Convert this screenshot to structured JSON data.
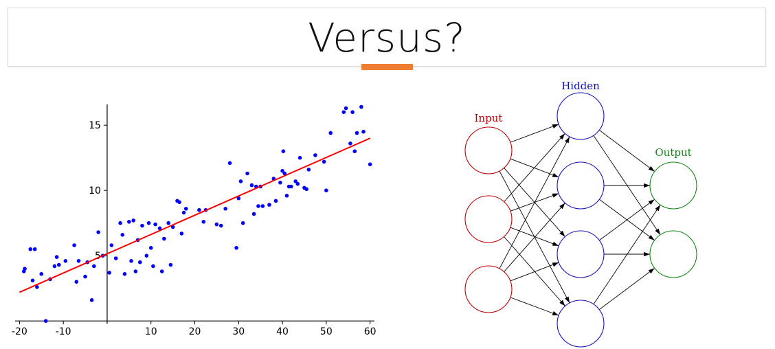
{
  "slide": {
    "title": "Versus?",
    "accent_color": "#ed7d31"
  },
  "chart_data": {
    "type": "scatter",
    "title": "",
    "xlabel": "",
    "ylabel": "",
    "xlim": [
      -21,
      61
    ],
    "ylim": [
      -0.2,
      16.8
    ],
    "x_ticks": [
      -20,
      -10,
      10,
      20,
      30,
      40,
      50,
      60
    ],
    "x_tick_labels": [
      "-20",
      "-10",
      "10",
      "20",
      "30",
      "40",
      "50",
      "60"
    ],
    "y_ticks": [
      5,
      10,
      15
    ],
    "y_tick_labels": [
      "5",
      "10",
      "15"
    ],
    "point_color": "#0000ff",
    "line_color": "#ff0000",
    "regression_line": {
      "x": [
        -20,
        60
      ],
      "y": [
        2.2,
        14.0
      ]
    },
    "points": [
      [
        -19,
        3.8
      ],
      [
        -18.8,
        4.0
      ],
      [
        -17.5,
        5.5
      ],
      [
        -17,
        3.1
      ],
      [
        -16.5,
        5.5
      ],
      [
        -16,
        2.6
      ],
      [
        -15,
        3.6
      ],
      [
        -14,
        0.0
      ],
      [
        -13,
        3.2
      ],
      [
        -12,
        4.2
      ],
      [
        -11.5,
        4.9
      ],
      [
        -11,
        4.3
      ],
      [
        -9.5,
        4.6
      ],
      [
        -7.5,
        5.8
      ],
      [
        -7,
        3.0
      ],
      [
        -6.5,
        4.6
      ],
      [
        -5,
        3.4
      ],
      [
        -4.5,
        4.5
      ],
      [
        -3.5,
        1.6
      ],
      [
        -3,
        4.2
      ],
      [
        -2,
        6.8
      ],
      [
        -1,
        5.0
      ],
      [
        0.5,
        3.7
      ],
      [
        1,
        5.8
      ],
      [
        2,
        4.8
      ],
      [
        3,
        7.5
      ],
      [
        3.5,
        6.6
      ],
      [
        4,
        3.6
      ],
      [
        5,
        7.6
      ],
      [
        5.5,
        4.6
      ],
      [
        6,
        7.7
      ],
      [
        6.5,
        3.8
      ],
      [
        7,
        6.2
      ],
      [
        7.5,
        4.5
      ],
      [
        8,
        7.3
      ],
      [
        9,
        5.0
      ],
      [
        9.5,
        7.5
      ],
      [
        10,
        5.6
      ],
      [
        10.5,
        4.2
      ],
      [
        11,
        7.4
      ],
      [
        12,
        7.1
      ],
      [
        12.5,
        3.8
      ],
      [
        13,
        6.3
      ],
      [
        14,
        7.5
      ],
      [
        14.5,
        4.3
      ],
      [
        15,
        7.2
      ],
      [
        16,
        9.2
      ],
      [
        16.5,
        9.1
      ],
      [
        17,
        6.7
      ],
      [
        17.5,
        8.3
      ],
      [
        18,
        8.6
      ],
      [
        21,
        8.5
      ],
      [
        22,
        7.6
      ],
      [
        22.5,
        8.5
      ],
      [
        25,
        7.4
      ],
      [
        26,
        7.3
      ],
      [
        27,
        8.6
      ],
      [
        28,
        12.1
      ],
      [
        29.5,
        5.6
      ],
      [
        30,
        9.4
      ],
      [
        30.5,
        10.7
      ],
      [
        31,
        7.5
      ],
      [
        32,
        11.3
      ],
      [
        33,
        10.4
      ],
      [
        33.5,
        8.2
      ],
      [
        34,
        10.3
      ],
      [
        34.5,
        8.8
      ],
      [
        35,
        10.3
      ],
      [
        35.5,
        8.8
      ],
      [
        37,
        8.9
      ],
      [
        38,
        10.9
      ],
      [
        38.5,
        9.2
      ],
      [
        39.5,
        10.6
      ],
      [
        40,
        11.5
      ],
      [
        40.2,
        13.0
      ],
      [
        40.5,
        11.3
      ],
      [
        41,
        9.6
      ],
      [
        41.5,
        10.3
      ],
      [
        42,
        10.3
      ],
      [
        43,
        10.7
      ],
      [
        43.5,
        10.5
      ],
      [
        44,
        12.5
      ],
      [
        45,
        10.2
      ],
      [
        45.5,
        10.1
      ],
      [
        46,
        11.6
      ],
      [
        47.5,
        12.7
      ],
      [
        49.5,
        12.2
      ],
      [
        50,
        10.0
      ],
      [
        51,
        14.4
      ],
      [
        54,
        16.0
      ],
      [
        54.5,
        16.3
      ],
      [
        55.5,
        13.6
      ],
      [
        56,
        16.0
      ],
      [
        56.5,
        13.0
      ],
      [
        57,
        14.4
      ],
      [
        58,
        16.4
      ],
      [
        58.5,
        14.5
      ],
      [
        60,
        12.0
      ]
    ]
  },
  "network": {
    "labels": {
      "input": "Input",
      "hidden": "Hidden",
      "output": "Output"
    },
    "colors": {
      "input": "#c00000",
      "hidden": "#1111bb",
      "output": "#118811",
      "edge": "#000000"
    },
    "layer_sizes": {
      "input": 3,
      "hidden": 4,
      "output": 2
    }
  }
}
